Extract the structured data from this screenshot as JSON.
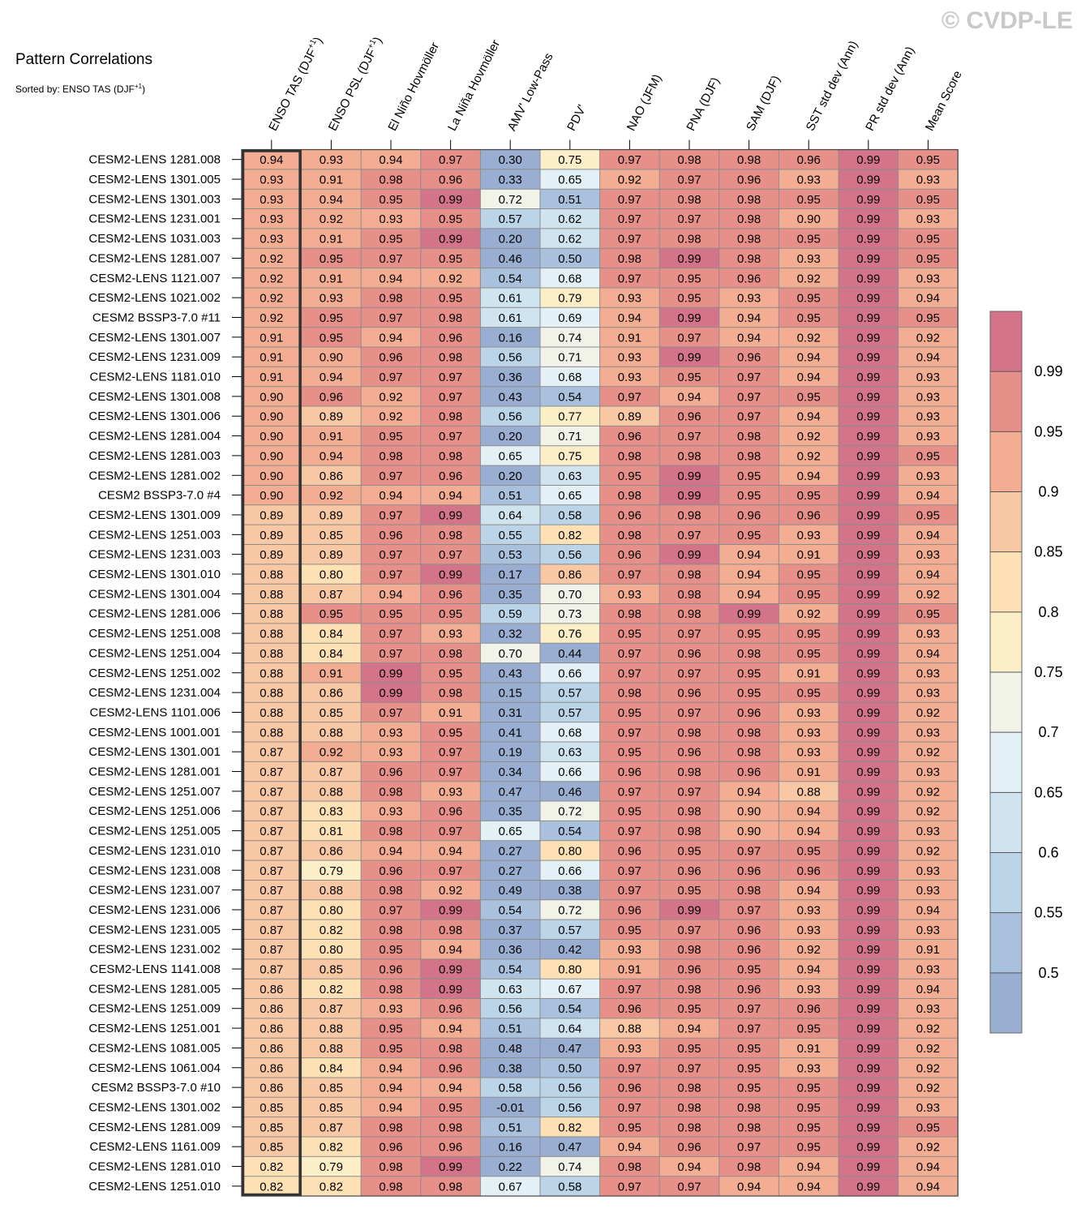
{
  "watermark": "© CVDP-LE",
  "chart_data": {
    "type": "heatmap",
    "title": "Pattern Correlations",
    "subtitle": "Sorted by: ENSO TAS (DJF+1)",
    "columns": [
      "ENSO TAS (DJF+1)",
      "ENSO PSL (DJF+1)",
      "El Niño Hovmöller",
      "La Niña Hovmöller",
      "AMV' Low-Pass",
      "PDV'",
      "NAO (JFM)",
      "PNA (DJF)",
      "SAM (DJF)",
      "SST std dev (Ann)",
      "PR std dev (Ann)",
      "Mean Score"
    ],
    "rows": [
      "CESM2-LENS 1281.008",
      "CESM2-LENS 1301.005",
      "CESM2-LENS 1301.003",
      "CESM2-LENS 1231.001",
      "CESM2-LENS 1031.003",
      "CESM2-LENS 1281.007",
      "CESM2-LENS 1121.007",
      "CESM2-LENS 1021.002",
      "CESM2 BSSP3-7.0 #11",
      "CESM2-LENS 1301.007",
      "CESM2-LENS 1231.009",
      "CESM2-LENS 1181.010",
      "CESM2-LENS 1301.008",
      "CESM2-LENS 1301.006",
      "CESM2-LENS 1281.004",
      "CESM2-LENS 1281.003",
      "CESM2-LENS 1281.002",
      "CESM2 BSSP3-7.0 #4",
      "CESM2-LENS 1301.009",
      "CESM2-LENS 1251.003",
      "CESM2-LENS 1231.003",
      "CESM2-LENS 1301.010",
      "CESM2-LENS 1301.004",
      "CESM2-LENS 1281.006",
      "CESM2-LENS 1251.008",
      "CESM2-LENS 1251.004",
      "CESM2-LENS 1251.002",
      "CESM2-LENS 1231.004",
      "CESM2-LENS 1101.006",
      "CESM2-LENS 1001.001",
      "CESM2-LENS 1301.001",
      "CESM2-LENS 1281.001",
      "CESM2-LENS 1251.007",
      "CESM2-LENS 1251.006",
      "CESM2-LENS 1251.005",
      "CESM2-LENS 1231.010",
      "CESM2-LENS 1231.008",
      "CESM2-LENS 1231.007",
      "CESM2-LENS 1231.006",
      "CESM2-LENS 1231.005",
      "CESM2-LENS 1231.002",
      "CESM2-LENS 1141.008",
      "CESM2-LENS 1281.005",
      "CESM2-LENS 1251.009",
      "CESM2-LENS 1251.001",
      "CESM2-LENS 1081.005",
      "CESM2-LENS 1061.004",
      "CESM2 BSSP3-7.0 #10",
      "CESM2-LENS 1301.002",
      "CESM2-LENS 1281.009",
      "CESM2-LENS 1161.009",
      "CESM2-LENS 1281.010",
      "CESM2-LENS 1251.010"
    ],
    "values": [
      [
        "0.94",
        "0.93",
        "0.94",
        "0.97",
        "0.30",
        "0.75",
        "0.97",
        "0.98",
        "0.98",
        "0.96",
        "0.99",
        "0.95"
      ],
      [
        "0.93",
        "0.91",
        "0.98",
        "0.96",
        "0.33",
        "0.65",
        "0.92",
        "0.97",
        "0.96",
        "0.93",
        "0.99",
        "0.93"
      ],
      [
        "0.93",
        "0.94",
        "0.95",
        "0.99",
        "0.72",
        "0.51",
        "0.97",
        "0.98",
        "0.98",
        "0.95",
        "0.99",
        "0.95"
      ],
      [
        "0.93",
        "0.92",
        "0.93",
        "0.95",
        "0.57",
        "0.62",
        "0.97",
        "0.97",
        "0.98",
        "0.90",
        "0.99",
        "0.93"
      ],
      [
        "0.93",
        "0.91",
        "0.95",
        "0.99",
        "0.20",
        "0.62",
        "0.97",
        "0.98",
        "0.98",
        "0.95",
        "0.99",
        "0.95"
      ],
      [
        "0.92",
        "0.95",
        "0.97",
        "0.95",
        "0.46",
        "0.50",
        "0.98",
        "0.99",
        "0.98",
        "0.93",
        "0.99",
        "0.95"
      ],
      [
        "0.92",
        "0.91",
        "0.94",
        "0.92",
        "0.54",
        "0.68",
        "0.97",
        "0.95",
        "0.96",
        "0.92",
        "0.99",
        "0.93"
      ],
      [
        "0.92",
        "0.93",
        "0.98",
        "0.95",
        "0.61",
        "0.79",
        "0.93",
        "0.95",
        "0.93",
        "0.95",
        "0.99",
        "0.94"
      ],
      [
        "0.92",
        "0.95",
        "0.97",
        "0.98",
        "0.61",
        "0.69",
        "0.94",
        "0.99",
        "0.94",
        "0.95",
        "0.99",
        "0.95"
      ],
      [
        "0.91",
        "0.95",
        "0.94",
        "0.96",
        "0.16",
        "0.74",
        "0.91",
        "0.97",
        "0.94",
        "0.92",
        "0.99",
        "0.92"
      ],
      [
        "0.91",
        "0.90",
        "0.96",
        "0.98",
        "0.56",
        "0.71",
        "0.93",
        "0.99",
        "0.96",
        "0.94",
        "0.99",
        "0.94"
      ],
      [
        "0.91",
        "0.94",
        "0.97",
        "0.97",
        "0.36",
        "0.68",
        "0.93",
        "0.95",
        "0.97",
        "0.94",
        "0.99",
        "0.93"
      ],
      [
        "0.90",
        "0.96",
        "0.92",
        "0.97",
        "0.43",
        "0.54",
        "0.97",
        "0.94",
        "0.97",
        "0.95",
        "0.99",
        "0.93"
      ],
      [
        "0.90",
        "0.89",
        "0.92",
        "0.98",
        "0.56",
        "0.77",
        "0.89",
        "0.96",
        "0.97",
        "0.94",
        "0.99",
        "0.93"
      ],
      [
        "0.90",
        "0.91",
        "0.95",
        "0.97",
        "0.20",
        "0.71",
        "0.96",
        "0.97",
        "0.98",
        "0.92",
        "0.99",
        "0.93"
      ],
      [
        "0.90",
        "0.94",
        "0.98",
        "0.98",
        "0.65",
        "0.75",
        "0.98",
        "0.98",
        "0.98",
        "0.92",
        "0.99",
        "0.95"
      ],
      [
        "0.90",
        "0.86",
        "0.97",
        "0.96",
        "0.20",
        "0.63",
        "0.95",
        "0.99",
        "0.95",
        "0.94",
        "0.99",
        "0.93"
      ],
      [
        "0.90",
        "0.92",
        "0.94",
        "0.94",
        "0.51",
        "0.65",
        "0.98",
        "0.99",
        "0.95",
        "0.95",
        "0.99",
        "0.94"
      ],
      [
        "0.89",
        "0.89",
        "0.97",
        "0.99",
        "0.64",
        "0.58",
        "0.96",
        "0.98",
        "0.96",
        "0.96",
        "0.99",
        "0.95"
      ],
      [
        "0.89",
        "0.85",
        "0.96",
        "0.98",
        "0.55",
        "0.82",
        "0.98",
        "0.97",
        "0.95",
        "0.93",
        "0.99",
        "0.94"
      ],
      [
        "0.89",
        "0.89",
        "0.97",
        "0.97",
        "0.53",
        "0.56",
        "0.96",
        "0.99",
        "0.94",
        "0.91",
        "0.99",
        "0.93"
      ],
      [
        "0.88",
        "0.80",
        "0.97",
        "0.99",
        "0.17",
        "0.86",
        "0.97",
        "0.98",
        "0.94",
        "0.95",
        "0.99",
        "0.94"
      ],
      [
        "0.88",
        "0.87",
        "0.94",
        "0.96",
        "0.35",
        "0.70",
        "0.93",
        "0.98",
        "0.94",
        "0.95",
        "0.99",
        "0.92"
      ],
      [
        "0.88",
        "0.95",
        "0.95",
        "0.95",
        "0.59",
        "0.73",
        "0.98",
        "0.98",
        "0.99",
        "0.92",
        "0.99",
        "0.95"
      ],
      [
        "0.88",
        "0.84",
        "0.97",
        "0.93",
        "0.32",
        "0.76",
        "0.95",
        "0.97",
        "0.95",
        "0.95",
        "0.99",
        "0.93"
      ],
      [
        "0.88",
        "0.84",
        "0.97",
        "0.98",
        "0.70",
        "0.44",
        "0.97",
        "0.96",
        "0.98",
        "0.95",
        "0.99",
        "0.94"
      ],
      [
        "0.88",
        "0.91",
        "0.99",
        "0.95",
        "0.43",
        "0.66",
        "0.97",
        "0.97",
        "0.95",
        "0.91",
        "0.99",
        "0.93"
      ],
      [
        "0.88",
        "0.86",
        "0.99",
        "0.98",
        "0.15",
        "0.57",
        "0.98",
        "0.96",
        "0.95",
        "0.95",
        "0.99",
        "0.93"
      ],
      [
        "0.88",
        "0.85",
        "0.97",
        "0.91",
        "0.31",
        "0.57",
        "0.95",
        "0.97",
        "0.96",
        "0.93",
        "0.99",
        "0.92"
      ],
      [
        "0.88",
        "0.88",
        "0.93",
        "0.95",
        "0.41",
        "0.68",
        "0.97",
        "0.98",
        "0.98",
        "0.93",
        "0.99",
        "0.93"
      ],
      [
        "0.87",
        "0.92",
        "0.93",
        "0.97",
        "0.19",
        "0.63",
        "0.95",
        "0.96",
        "0.98",
        "0.93",
        "0.99",
        "0.92"
      ],
      [
        "0.87",
        "0.87",
        "0.96",
        "0.97",
        "0.34",
        "0.66",
        "0.96",
        "0.98",
        "0.96",
        "0.91",
        "0.99",
        "0.93"
      ],
      [
        "0.87",
        "0.88",
        "0.98",
        "0.93",
        "0.47",
        "0.46",
        "0.97",
        "0.97",
        "0.94",
        "0.88",
        "0.99",
        "0.92"
      ],
      [
        "0.87",
        "0.83",
        "0.93",
        "0.96",
        "0.35",
        "0.72",
        "0.95",
        "0.98",
        "0.90",
        "0.94",
        "0.99",
        "0.92"
      ],
      [
        "0.87",
        "0.81",
        "0.98",
        "0.97",
        "0.65",
        "0.54",
        "0.97",
        "0.98",
        "0.90",
        "0.94",
        "0.99",
        "0.93"
      ],
      [
        "0.87",
        "0.86",
        "0.94",
        "0.94",
        "0.27",
        "0.80",
        "0.96",
        "0.95",
        "0.97",
        "0.95",
        "0.99",
        "0.92"
      ],
      [
        "0.87",
        "0.79",
        "0.96",
        "0.97",
        "0.27",
        "0.66",
        "0.97",
        "0.96",
        "0.96",
        "0.96",
        "0.99",
        "0.93"
      ],
      [
        "0.87",
        "0.88",
        "0.98",
        "0.92",
        "0.49",
        "0.38",
        "0.97",
        "0.95",
        "0.98",
        "0.94",
        "0.99",
        "0.93"
      ],
      [
        "0.87",
        "0.80",
        "0.97",
        "0.99",
        "0.54",
        "0.72",
        "0.96",
        "0.99",
        "0.97",
        "0.93",
        "0.99",
        "0.94"
      ],
      [
        "0.87",
        "0.82",
        "0.98",
        "0.98",
        "0.37",
        "0.57",
        "0.95",
        "0.97",
        "0.96",
        "0.93",
        "0.99",
        "0.93"
      ],
      [
        "0.87",
        "0.80",
        "0.95",
        "0.94",
        "0.36",
        "0.42",
        "0.93",
        "0.98",
        "0.96",
        "0.92",
        "0.99",
        "0.91"
      ],
      [
        "0.87",
        "0.85",
        "0.96",
        "0.99",
        "0.54",
        "0.80",
        "0.91",
        "0.96",
        "0.95",
        "0.94",
        "0.99",
        "0.93"
      ],
      [
        "0.86",
        "0.82",
        "0.98",
        "0.99",
        "0.63",
        "0.67",
        "0.97",
        "0.98",
        "0.96",
        "0.93",
        "0.99",
        "0.94"
      ],
      [
        "0.86",
        "0.87",
        "0.93",
        "0.96",
        "0.56",
        "0.54",
        "0.96",
        "0.95",
        "0.97",
        "0.96",
        "0.99",
        "0.93"
      ],
      [
        "0.86",
        "0.88",
        "0.95",
        "0.94",
        "0.51",
        "0.64",
        "0.88",
        "0.94",
        "0.97",
        "0.95",
        "0.99",
        "0.92"
      ],
      [
        "0.86",
        "0.88",
        "0.95",
        "0.98",
        "0.48",
        "0.47",
        "0.93",
        "0.95",
        "0.95",
        "0.91",
        "0.99",
        "0.92"
      ],
      [
        "0.86",
        "0.84",
        "0.94",
        "0.96",
        "0.38",
        "0.50",
        "0.97",
        "0.97",
        "0.95",
        "0.93",
        "0.99",
        "0.92"
      ],
      [
        "0.86",
        "0.85",
        "0.94",
        "0.94",
        "0.58",
        "0.56",
        "0.96",
        "0.98",
        "0.95",
        "0.95",
        "0.99",
        "0.92"
      ],
      [
        "0.85",
        "0.85",
        "0.94",
        "0.95",
        "-0.01",
        "0.56",
        "0.97",
        "0.98",
        "0.98",
        "0.95",
        "0.99",
        "0.93"
      ],
      [
        "0.85",
        "0.87",
        "0.98",
        "0.98",
        "0.51",
        "0.82",
        "0.95",
        "0.98",
        "0.98",
        "0.95",
        "0.99",
        "0.95"
      ],
      [
        "0.85",
        "0.82",
        "0.96",
        "0.96",
        "0.16",
        "0.47",
        "0.94",
        "0.96",
        "0.97",
        "0.95",
        "0.99",
        "0.92"
      ],
      [
        "0.82",
        "0.79",
        "0.98",
        "0.99",
        "0.22",
        "0.74",
        "0.98",
        "0.94",
        "0.98",
        "0.94",
        "0.99",
        "0.94"
      ],
      [
        "0.82",
        "0.82",
        "0.98",
        "0.98",
        "0.67",
        "0.58",
        "0.97",
        "0.97",
        "0.94",
        "0.94",
        "0.99",
        "0.94"
      ]
    ],
    "highlighted_column": "ENSO TAS (DJF+1)",
    "colorbar": {
      "levels": [
        0.5,
        0.55,
        0.6,
        0.65,
        0.7,
        0.75,
        0.8,
        0.85,
        0.9,
        0.95,
        0.99
      ],
      "tick_labels": [
        "0.5",
        "0.55",
        "0.6",
        "0.65",
        "0.7",
        "0.75",
        "0.8",
        "0.85",
        "0.9",
        "0.95",
        "0.99"
      ],
      "colors": [
        "#9aaed2",
        "#a9c1dd",
        "#bbd4e7",
        "#cfe4ef",
        "#e3f0f6",
        "#f1f2e8",
        "#fcefc8",
        "#fde0b4",
        "#f8c7a4",
        "#f3ad93",
        "#e79089",
        "#d3748a"
      ]
    }
  }
}
